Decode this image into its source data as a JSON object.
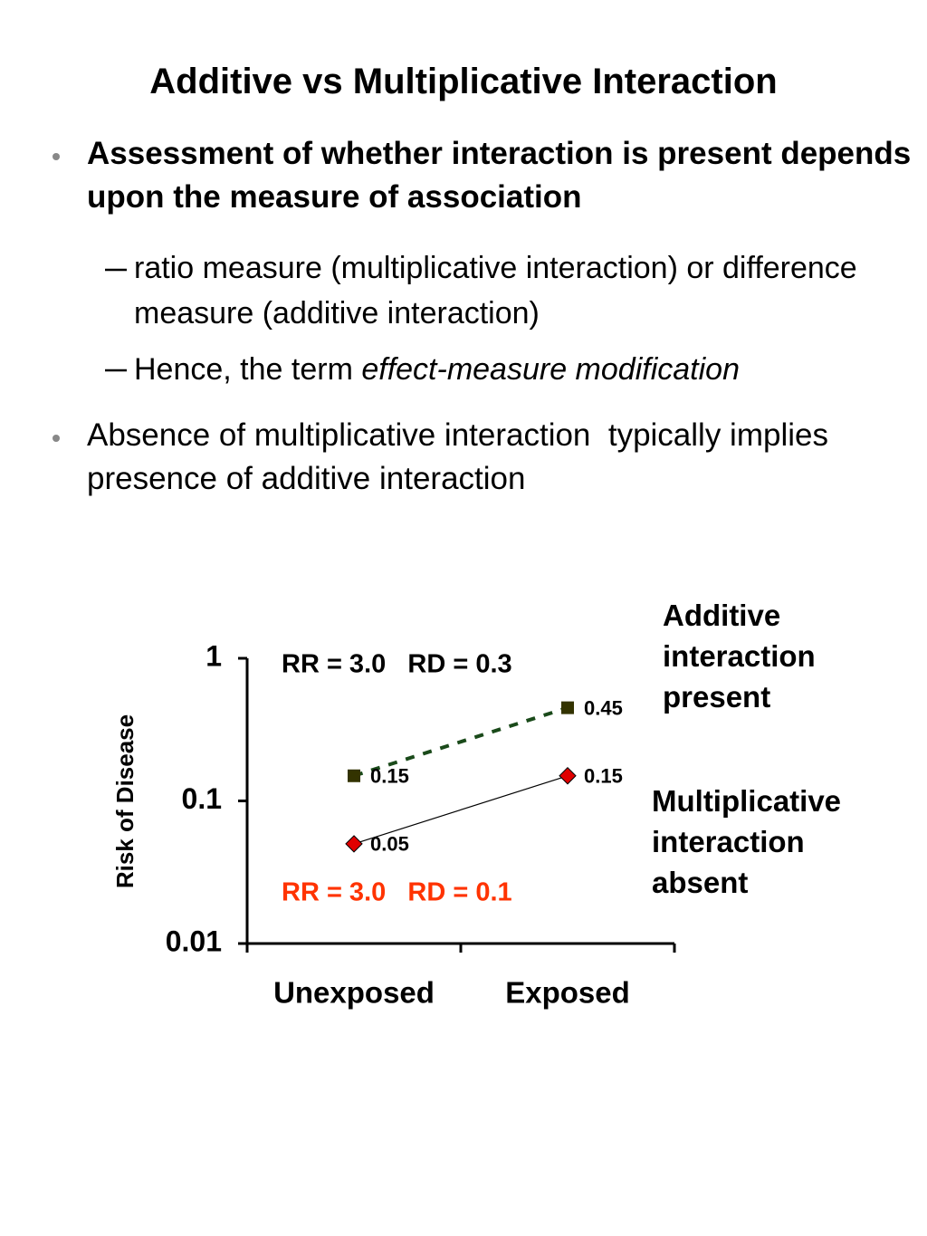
{
  "title": "Additive vs Multiplicative Interaction",
  "bullets": [
    {
      "text": "Assessment of whether interaction is present depends upon the measure of association",
      "sub": [
        {
          "text": "ratio measure (multiplicative interaction) or difference measure (additive interaction)"
        },
        {
          "text": "Hence, the term ",
          "emphasis": "effect-measure modification"
        }
      ]
    },
    {
      "text": "Absence of multiplicative interaction  typically implies presence of additive interaction"
    }
  ],
  "chart_data": {
    "type": "line",
    "y_label": "Risk of Disease",
    "categories": [
      "Unexposed",
      "Exposed"
    ],
    "log_y": true,
    "ylim": [
      0.01,
      1
    ],
    "yticks": [
      0.01,
      0.1,
      1
    ],
    "series": [
      {
        "values": [
          0.15,
          0.45
        ],
        "color": "#333300",
        "line_color": "#1a4a1a",
        "dashed": true,
        "marker": "square"
      },
      {
        "values": [
          0.05,
          0.15
        ],
        "color": "#e00000",
        "line_color": "#000000",
        "dashed": false,
        "marker": "diamond"
      }
    ],
    "annotations": [
      {
        "text": "RR = 3.0   RD = 0.3",
        "color": "#000000"
      },
      {
        "text": "RR = 3.0   RD = 0.1",
        "color": "#ff3300"
      },
      {
        "text": "Additive interaction present",
        "color": "#000000"
      },
      {
        "text": "Multiplicative interaction absent",
        "color": "#000000"
      }
    ]
  }
}
